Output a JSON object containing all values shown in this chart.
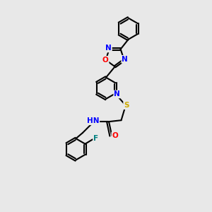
{
  "background_color": "#e8e8e8",
  "atom_colors": {
    "N": "#0000ff",
    "O": "#ff0000",
    "S": "#ccaa00",
    "F": "#008080",
    "C": "#000000",
    "H": "#000000"
  },
  "bond_color": "#000000",
  "bond_width": 1.5,
  "fig_width": 3.0,
  "fig_height": 3.0,
  "dpi": 100
}
